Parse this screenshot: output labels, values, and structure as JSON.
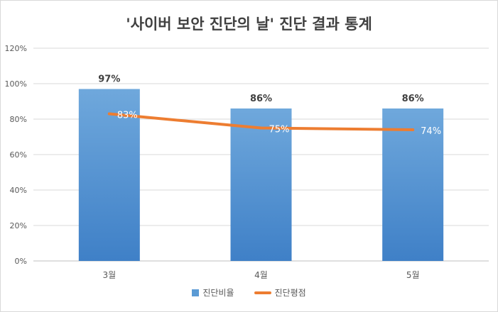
{
  "chart_data": {
    "type": "bar",
    "title": "'사이버 보안 진단의 날' 진단 결과 통계",
    "categories": [
      "3월",
      "4월",
      "5월"
    ],
    "ylim": [
      0,
      120
    ],
    "yticks": [
      "0%",
      "20%",
      "40%",
      "60%",
      "80%",
      "100%",
      "120%"
    ],
    "grid": true,
    "legend_position": "bottom",
    "series": [
      {
        "name": "진단비율",
        "type": "bar",
        "color": "#5b9bd5",
        "values": [
          97,
          86,
          86
        ],
        "labels": [
          "97%",
          "86%",
          "86%"
        ]
      },
      {
        "name": "진단평점",
        "type": "line",
        "color": "#ed7d31",
        "values": [
          83,
          75,
          74
        ],
        "labels": [
          "83%",
          "75%",
          "74%"
        ]
      }
    ]
  }
}
